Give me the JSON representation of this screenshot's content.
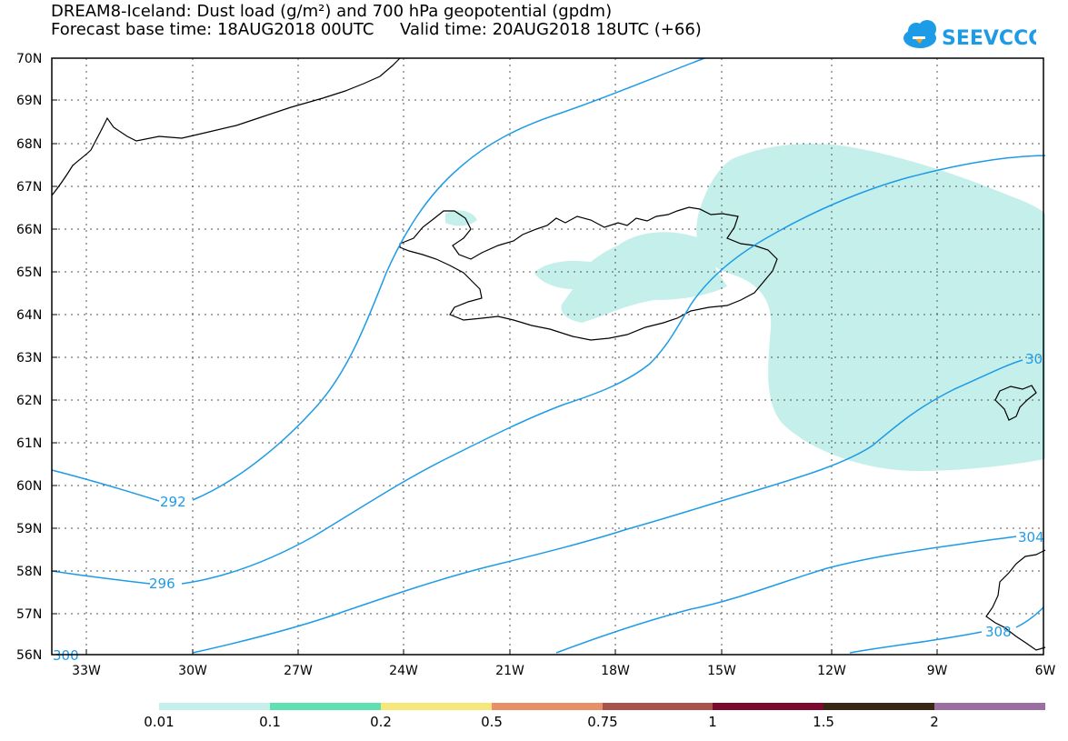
{
  "title": {
    "line1": "DREAM8-Iceland: Dust load (g/m²) and 700 hPa geopotential (gpdm)",
    "line2": "Forecast base time: 18AUG2018 00UTC     Valid time: 20AUG2018 18UTC (+66)"
  },
  "logo": {
    "text": "SEEVCCC",
    "color": "#1e9be6",
    "icon": "cloud-icon"
  },
  "map": {
    "lat_labels": [
      "70N",
      "69N",
      "68N",
      "67N",
      "66N",
      "65N",
      "64N",
      "63N",
      "62N",
      "61N",
      "60N",
      "59N",
      "58N",
      "57N",
      "56N"
    ],
    "lon_labels": [
      "33W",
      "30W",
      "27W",
      "24W",
      "21W",
      "18W",
      "15W",
      "12W",
      "9W",
      "6W"
    ],
    "contour_labels": [
      "292",
      "296",
      "300",
      "304",
      "308",
      "30"
    ],
    "contour_color": "#1e9be6",
    "dust_color": "#c4efeb"
  },
  "colorbar": {
    "labels": [
      "0.01",
      "0.1",
      "0.2",
      "0.5",
      "0.75",
      "1",
      "1.5",
      "2"
    ],
    "colors": [
      "#c4efeb",
      "#5ee0b3",
      "#f6e77a",
      "#e98f66",
      "#a8524c",
      "#7c0a2f",
      "#3a2713",
      "#9b6fa1"
    ]
  }
}
